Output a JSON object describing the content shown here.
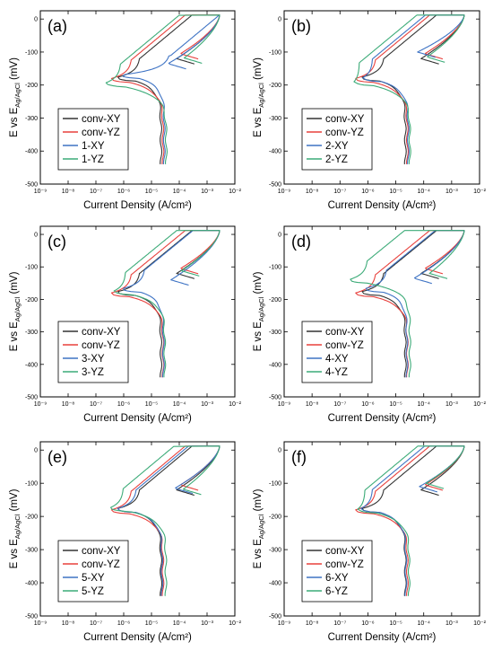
{
  "figure": {
    "series_colors": [
      "#333333",
      "#e8403c",
      "#3e73c4",
      "#3cab78"
    ]
  },
  "chart_data": [
    {
      "type": "line",
      "panel_label": "(a)",
      "xlabel": "Current Density (A/cm²)",
      "ylabel": "E vs E_Ag/AgCl (mV)",
      "xscale": "log",
      "xlim": [
        1e-09,
        0.01
      ],
      "ylim": [
        -500,
        25
      ],
      "xticks": [
        "10⁻⁹",
        "10⁻⁸",
        "10⁻⁷",
        "10⁻⁶",
        "10⁻⁵",
        "10⁻⁴",
        "10⁻³",
        "10⁻²"
      ],
      "yticks": [
        "0",
        "-100",
        "-200",
        "-300",
        "-400",
        "-500"
      ],
      "legend_position": "lower-left",
      "series": [
        {
          "name": "conv-XY",
          "ecorr": -178,
          "icorr": 5e-07,
          "ilim": 2.2e-05,
          "ibrk": 4e-06,
          "ipass": 8e-05,
          "ep": -120
        },
        {
          "name": "conv-YZ",
          "ecorr": -182,
          "icorr": 3e-07,
          "ilim": 2.6e-05,
          "ibrk": 2e-06,
          "ipass": 0.00011,
          "ep": -105
        },
        {
          "name": "1-XY",
          "ecorr": -170,
          "icorr": 7e-07,
          "ilim": 2.9e-05,
          "ibrk": 5e-05,
          "ipass": 4e-05,
          "ep": -135
        },
        {
          "name": "1-YZ",
          "ecorr": -195,
          "icorr": 2e-07,
          "ilim": 3.4e-05,
          "ibrk": 8e-07,
          "ipass": 0.00015,
          "ep": -118
        }
      ]
    },
    {
      "type": "line",
      "panel_label": "(b)",
      "xlabel": "Current Density (A/cm²)",
      "ylabel": "E vs E_Ag/AgCl (mV)",
      "xscale": "log",
      "xlim": [
        1e-09,
        0.01
      ],
      "ylim": [
        -500,
        25
      ],
      "xticks": [
        "10⁻⁹",
        "10⁻⁸",
        "10⁻⁷",
        "10⁻⁶",
        "10⁻⁵",
        "10⁻⁴",
        "10⁻³",
        "10⁻²"
      ],
      "yticks": [
        "0",
        "-100",
        "-200",
        "-300",
        "-400",
        "-500"
      ],
      "legend_position": "lower-left",
      "series": [
        {
          "name": "conv-XY",
          "ecorr": -178,
          "icorr": 5e-07,
          "ilim": 2.2e-05,
          "ibrk": 4e-06,
          "ipass": 8e-05,
          "ep": -120
        },
        {
          "name": "conv-YZ",
          "ecorr": -182,
          "icorr": 3e-07,
          "ilim": 2.6e-05,
          "ibrk": 2e-06,
          "ipass": 0.00011,
          "ep": -105
        },
        {
          "name": "2-XY",
          "ecorr": -180,
          "icorr": 6e-07,
          "ilim": 2.8e-05,
          "ibrk": 1.5e-06,
          "ipass": 6e-05,
          "ep": -100
        },
        {
          "name": "2-YZ",
          "ecorr": -192,
          "icorr": 3e-07,
          "ilim": 3.2e-05,
          "ibrk": 5e-07,
          "ipass": 0.00013,
          "ep": -115
        }
      ]
    },
    {
      "type": "line",
      "panel_label": "(c)",
      "xlabel": "Current Density (A/cm²)",
      "ylabel": "E vs E_Ag/AgCl (mV)",
      "xscale": "log",
      "xlim": [
        1e-09,
        0.01
      ],
      "ylim": [
        -500,
        25
      ],
      "xticks": [
        "10⁻⁹",
        "10⁻⁸",
        "10⁻⁷",
        "10⁻⁶",
        "10⁻⁵",
        "10⁻⁴",
        "10⁻³",
        "10⁻²"
      ],
      "yticks": [
        "0",
        "-100",
        "-200",
        "-300",
        "-400",
        "-500"
      ],
      "legend_position": "lower-left",
      "series": [
        {
          "name": "conv-XY",
          "ecorr": -178,
          "icorr": 5e-07,
          "ilim": 2.2e-05,
          "ibrk": 4e-06,
          "ipass": 8e-05,
          "ep": -120
        },
        {
          "name": "conv-YZ",
          "ecorr": -182,
          "icorr": 3e-07,
          "ilim": 2.6e-05,
          "ibrk": 2e-06,
          "ipass": 0.00011,
          "ep": -105
        },
        {
          "name": "3-XY",
          "ecorr": -168,
          "icorr": 8e-07,
          "ilim": 2.7e-05,
          "ibrk": 6e-06,
          "ipass": 5e-05,
          "ep": -140
        },
        {
          "name": "3-YZ",
          "ecorr": -176,
          "icorr": 4e-07,
          "ilim": 3e-05,
          "ibrk": 1.2e-06,
          "ipass": 0.00012,
          "ep": -112
        }
      ]
    },
    {
      "type": "line",
      "panel_label": "(d)",
      "xlabel": "Current Density (A/cm²)",
      "ylabel": "E vs E_Ag/AgCl (mV)",
      "xscale": "log",
      "xlim": [
        1e-09,
        0.01
      ],
      "ylim": [
        -500,
        25
      ],
      "xticks": [
        "10⁻⁹",
        "10⁻⁸",
        "10⁻⁷",
        "10⁻⁶",
        "10⁻⁵",
        "10⁻⁴",
        "10⁻³",
        "10⁻²"
      ],
      "yticks": [
        "0",
        "-100",
        "-200",
        "-300",
        "-400",
        "-500"
      ],
      "legend_position": "lower-left",
      "series": [
        {
          "name": "conv-XY",
          "ecorr": -178,
          "icorr": 5e-07,
          "ilim": 2.2e-05,
          "ibrk": 4e-06,
          "ipass": 8e-05,
          "ep": -120
        },
        {
          "name": "conv-YZ",
          "ecorr": -182,
          "icorr": 3e-07,
          "ilim": 2.6e-05,
          "ibrk": 2e-06,
          "ipass": 0.00011,
          "ep": -105
        },
        {
          "name": "4-XY",
          "ecorr": -168,
          "icorr": 7e-07,
          "ilim": 2.5e-05,
          "ibrk": 5e-06,
          "ipass": 4.5e-05,
          "ep": -135
        },
        {
          "name": "4-YZ",
          "ecorr": -140,
          "icorr": 2e-07,
          "ilim": 3.2e-05,
          "ibrk": 1e-06,
          "ipass": 0.00016,
          "ep": -120
        }
      ]
    },
    {
      "type": "line",
      "panel_label": "(e)",
      "xlabel": "Current Density (A/cm²)",
      "ylabel": "E vs E_Ag/AgCl (mV)",
      "xscale": "log",
      "xlim": [
        1e-09,
        0.01
      ],
      "ylim": [
        -500,
        25
      ],
      "xticks": [
        "10⁻⁹",
        "10⁻⁸",
        "10⁻⁷",
        "10⁻⁶",
        "10⁻⁵",
        "10⁻⁴",
        "10⁻³",
        "10⁻²"
      ],
      "yticks": [
        "0",
        "-100",
        "-200",
        "-300",
        "-400",
        "-500"
      ],
      "legend_position": "lower-left",
      "series": [
        {
          "name": "conv-XY",
          "ecorr": -178,
          "icorr": 5e-07,
          "ilim": 2.2e-05,
          "ibrk": 4e-06,
          "ipass": 8e-05,
          "ep": -120
        },
        {
          "name": "conv-YZ",
          "ecorr": -182,
          "icorr": 3e-07,
          "ilim": 2.6e-05,
          "ibrk": 2e-06,
          "ipass": 0.00011,
          "ep": -105
        },
        {
          "name": "5-XY",
          "ecorr": -178,
          "icorr": 5e-07,
          "ilim": 2.4e-05,
          "ibrk": 3e-06,
          "ipass": 7e-05,
          "ep": -115
        },
        {
          "name": "5-YZ",
          "ecorr": -175,
          "icorr": 3e-07,
          "ilim": 3.3e-05,
          "ibrk": 1e-06,
          "ipass": 0.00014,
          "ep": -118
        }
      ]
    },
    {
      "type": "line",
      "panel_label": "(f)",
      "xlabel": "Current Density (A/cm²)",
      "ylabel": "E vs E_Ag/AgCl (mV)",
      "xscale": "log",
      "xlim": [
        1e-09,
        0.01
      ],
      "ylim": [
        -500,
        25
      ],
      "xticks": [
        "10⁻⁹",
        "10⁻⁸",
        "10⁻⁷",
        "10⁻⁶",
        "10⁻⁵",
        "10⁻⁴",
        "10⁻³",
        "10⁻²"
      ],
      "yticks": [
        "0",
        "-100",
        "-200",
        "-300",
        "-400",
        "-500"
      ],
      "legend_position": "lower-left",
      "series": [
        {
          "name": "conv-XY",
          "ecorr": -178,
          "icorr": 5e-07,
          "ilim": 2.2e-05,
          "ibrk": 4e-06,
          "ipass": 8e-05,
          "ep": -120
        },
        {
          "name": "conv-YZ",
          "ecorr": -182,
          "icorr": 3e-07,
          "ilim": 2.6e-05,
          "ibrk": 2e-06,
          "ipass": 0.00011,
          "ep": -105
        },
        {
          "name": "6-XY",
          "ecorr": -178,
          "icorr": 5e-07,
          "ilim": 2.3e-05,
          "ibrk": 1.5e-06,
          "ipass": 7e-05,
          "ep": -110
        },
        {
          "name": "6-YZ",
          "ecorr": -180,
          "icorr": 4e-07,
          "ilim": 3e-05,
          "ibrk": 8e-07,
          "ipass": 0.00012,
          "ep": -100
        }
      ]
    }
  ]
}
